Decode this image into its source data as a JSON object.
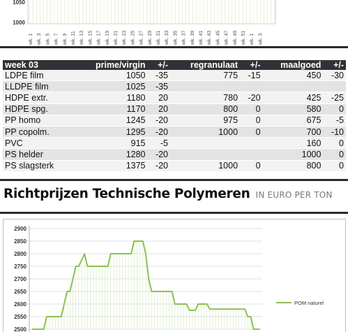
{
  "top_chart": {
    "y_tick": "1000",
    "y_tick_above": "1050",
    "x_labels": [
      "wk. 1",
      "wk. 3",
      "wk. 5",
      "wk. 7",
      "wk. 9",
      "wk. 11",
      "wk. 13",
      "wk. 15",
      "wk. 17",
      "wk. 19",
      "wk. 21",
      "wk. 23",
      "wk. 25",
      "wk. 27",
      "wk. 29",
      "wk. 31",
      "wk. 33",
      "wk. 35",
      "wk. 37",
      "wk. 39",
      "wk. 41",
      "wk. 43",
      "wk. 45",
      "wk. 47",
      "wk. 49",
      "wk. 51",
      "wk. 1",
      "wk. 3"
    ]
  },
  "table": {
    "headers": [
      "week 03",
      "prime/virgin",
      "+/-",
      "regranulaat",
      "+/-",
      "maalgoed",
      "+/-"
    ],
    "rows": [
      [
        "LDPE film",
        "1050",
        "-35",
        "775",
        "-15",
        "450",
        "-30"
      ],
      [
        "LLDPE film",
        "1025",
        "-35",
        "",
        "",
        "",
        ""
      ],
      [
        "HDPE extr.",
        "1180",
        "20",
        "780",
        "-20",
        "425",
        "-25"
      ],
      [
        "HDPE spg.",
        "1170",
        "20",
        "800",
        "0",
        "580",
        "0"
      ],
      [
        "PP homo",
        "1245",
        "-20",
        "975",
        "0",
        "675",
        "-5"
      ],
      [
        "PP copolm.",
        "1295",
        "-20",
        "1000",
        "0",
        "700",
        "-10"
      ],
      [
        "PVC",
        "915",
        "-5",
        "",
        "",
        "160",
        "0"
      ],
      [
        "PS helder",
        "1280",
        "-20",
        "",
        "",
        "1000",
        "0"
      ],
      [
        "PS slagsterk",
        "1375",
        "-20",
        "1000",
        "0",
        "800",
        "0"
      ]
    ]
  },
  "heading": {
    "title": "Richtprijzen Technische Polymeren",
    "subtitle": "IN EURO PER TON"
  },
  "chart_data": {
    "type": "line",
    "title": "",
    "xlabel": "",
    "ylabel": "",
    "ylim": [
      2500,
      2900
    ],
    "y_ticks": [
      "2900",
      "2850",
      "2800",
      "2750",
      "2700",
      "2650",
      "2600",
      "2550",
      "2500"
    ],
    "grid": true,
    "legend_position": "right",
    "series": [
      {
        "name": "POM naturel",
        "color": "#8cc152",
        "values": [
          2500,
          2500,
          2500,
          2500,
          2500,
          2550,
          2550,
          2550,
          2550,
          2550,
          2550,
          2600,
          2650,
          2650,
          2700,
          2750,
          2750,
          2775,
          2800,
          2750,
          2750,
          2750,
          2750,
          2750,
          2750,
          2750,
          2750,
          2800,
          2800,
          2800,
          2800,
          2800,
          2800,
          2800,
          2800,
          2850,
          2850,
          2850,
          2850,
          2800,
          2700,
          2650,
          2650,
          2650,
          2650,
          2650,
          2650,
          2650,
          2650,
          2600,
          2600,
          2600,
          2600,
          2600,
          2575,
          2575,
          2575,
          2600,
          2600,
          2600,
          2600,
          2580,
          2580,
          2580,
          2580,
          2580,
          2580,
          2580,
          2580,
          2580,
          2580,
          2580,
          2580,
          2580,
          2550,
          2550,
          2500,
          2500,
          2500
        ]
      }
    ]
  }
}
